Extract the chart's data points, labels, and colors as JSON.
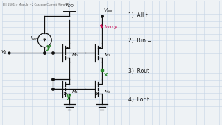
{
  "bg_color": "#eef2f5",
  "grid_color": "#c5d5e5",
  "title_text": "EE 2601 > Module +2 Cascode Current Mirrors",
  "items": [
    {
      "label": "1)  All t",
      "fx": 0.575,
      "fy": 0.88
    },
    {
      "label": "2)  Rin =",
      "fx": 0.575,
      "fy": 0.68
    },
    {
      "label": "3)  Rout",
      "fx": 0.575,
      "fy": 0.43
    },
    {
      "label": "4)  For t",
      "fx": 0.575,
      "fy": 0.2
    }
  ],
  "green": "#2e8b2e",
  "pink": "#cc1155",
  "black": "#111111",
  "grid_step_fx": 0.034,
  "grid_step_fy": 0.053
}
